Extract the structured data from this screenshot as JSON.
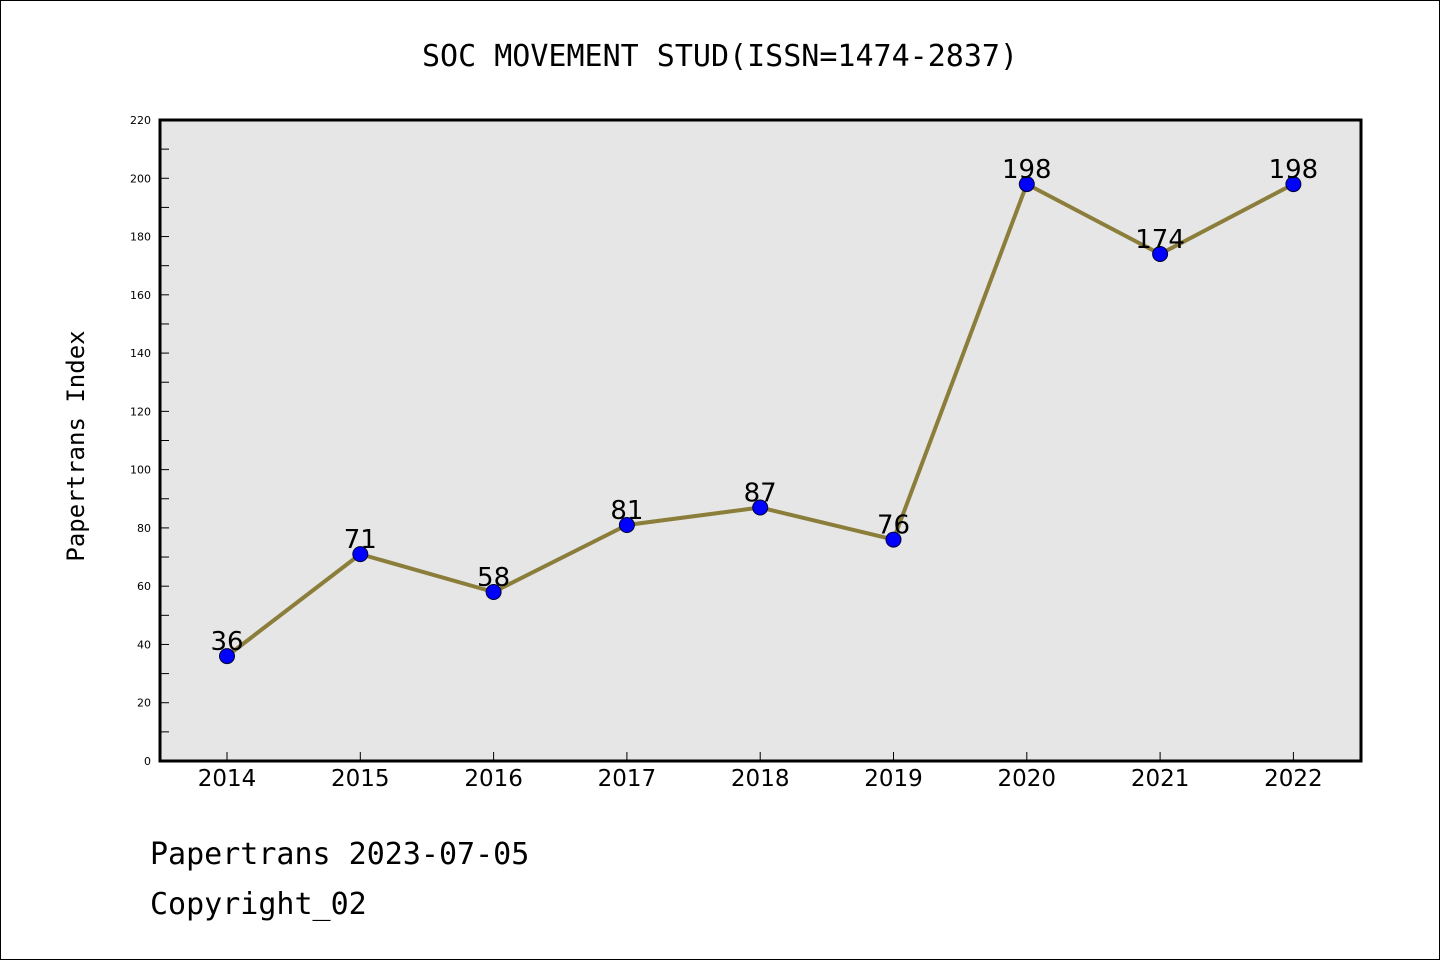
{
  "chart_data": {
    "type": "line",
    "title": "SOC MOVEMENT STUD(ISSN=1474-2837)",
    "xlabel": "",
    "ylabel": "Papertrans Index",
    "categories": [
      "2014",
      "2015",
      "2016",
      "2017",
      "2018",
      "2019",
      "2020",
      "2021",
      "2022"
    ],
    "series": [
      {
        "values": [
          36,
          71,
          58,
          81,
          87,
          76,
          198,
          174,
          198
        ],
        "labels": [
          "36",
          "71",
          "58",
          "81",
          "87",
          "76",
          "198",
          "174",
          "198"
        ]
      }
    ],
    "ylim": [
      0,
      220
    ],
    "yticks": [
      "0",
      "20",
      "40",
      "60",
      "80",
      "100",
      "120",
      "140",
      "160",
      "180",
      "200",
      "220"
    ],
    "grid": false,
    "colors": {
      "line": "#8b7d3a",
      "marker": "#0000ff",
      "plot_background": "#e6e6e6"
    }
  },
  "footer": {
    "line1": "Papertrans 2023-07-05",
    "line2": "Copyright_02"
  }
}
